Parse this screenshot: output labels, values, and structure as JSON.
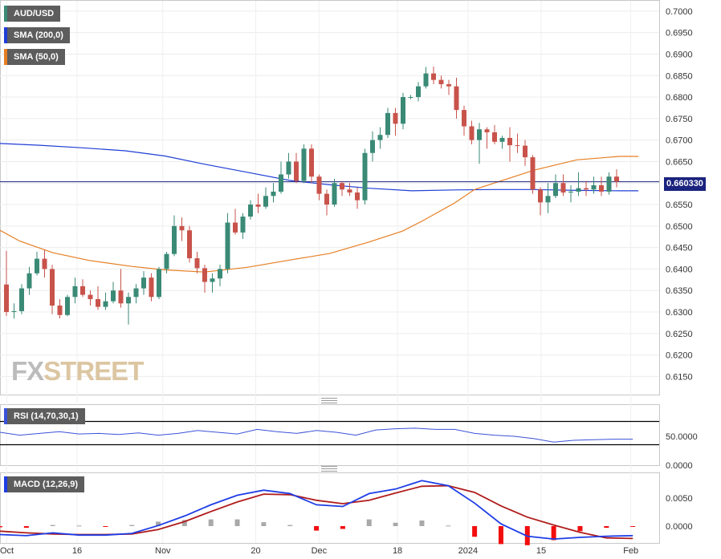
{
  "legend": {
    "pair": "AUD/USD",
    "sma200": "SMA (200,0)",
    "sma50": "SMA (50,0)",
    "rsi": "RSI (14,70,30,1)",
    "macd": "MACD (12,26,9)"
  },
  "watermark": {
    "part1": "FX",
    "part2": "STREET"
  },
  "colors": {
    "up": "#3a8a76",
    "down": "#c8534b",
    "sma200": "#1f3ed6",
    "sma50": "#e67e22",
    "rsi": "#3a52d8",
    "macd": "#1e3de6",
    "signal": "#b01c1c",
    "hist_pos": "#a9a9a9",
    "hist_neg": "#f20d0d",
    "legend_bg": "#5d5d5d",
    "price_box": "#1a237e"
  },
  "chart_data": [
    {
      "type": "candlestick",
      "name": "AUD/USD",
      "ylim": [
        0.612,
        0.701
      ],
      "yticks": [
        "0.7000",
        "0.6950",
        "0.6900",
        "0.6850",
        "0.6800",
        "0.6750",
        "0.6700",
        "0.6650",
        "0.6600",
        "0.6550",
        "0.6500",
        "0.6450",
        "0.6400",
        "0.6350",
        "0.6300",
        "0.6250",
        "0.6200",
        "0.6150"
      ],
      "current_price": "0.660330",
      "current_value": 0.6603,
      "date_range": [
        "2023-10-02",
        "2024-02-01"
      ],
      "x_ticks": [
        "Oct",
        "16",
        "Nov",
        "20",
        "Dec",
        "18",
        "2024",
        "15",
        "Feb"
      ],
      "ohlc": [
        [
          0.6364,
          0.6442,
          0.6291,
          0.63
        ],
        [
          0.63,
          0.632,
          0.6285,
          0.6302
        ],
        [
          0.6302,
          0.6365,
          0.6295,
          0.6355
        ],
        [
          0.6355,
          0.6405,
          0.634,
          0.639
        ],
        [
          0.639,
          0.644,
          0.6385,
          0.6424
        ],
        [
          0.6424,
          0.6445,
          0.638,
          0.64
        ],
        [
          0.64,
          0.641,
          0.6295,
          0.6315
        ],
        [
          0.6315,
          0.633,
          0.6285,
          0.6293
        ],
        [
          0.6293,
          0.634,
          0.629,
          0.6335
        ],
        [
          0.6335,
          0.638,
          0.632,
          0.636
        ],
        [
          0.636,
          0.6376,
          0.6335,
          0.634
        ],
        [
          0.634,
          0.635,
          0.6315,
          0.633
        ],
        [
          0.633,
          0.636,
          0.6305,
          0.6312
        ],
        [
          0.6312,
          0.6345,
          0.6305,
          0.6325
        ],
        [
          0.6325,
          0.637,
          0.632,
          0.635
        ],
        [
          0.635,
          0.64,
          0.631,
          0.632
        ],
        [
          0.632,
          0.6345,
          0.6271,
          0.6335
        ],
        [
          0.6335,
          0.6365,
          0.632,
          0.6355
        ],
        [
          0.6355,
          0.6395,
          0.634,
          0.638
        ],
        [
          0.638,
          0.639,
          0.6325,
          0.6335
        ],
        [
          0.6335,
          0.6405,
          0.633,
          0.64
        ],
        [
          0.64,
          0.644,
          0.639,
          0.6435
        ],
        [
          0.6435,
          0.6525,
          0.643,
          0.65
        ],
        [
          0.65,
          0.652,
          0.6465,
          0.649
        ],
        [
          0.649,
          0.65,
          0.6415,
          0.6425
        ],
        [
          0.6425,
          0.644,
          0.639,
          0.6402
        ],
        [
          0.6402,
          0.641,
          0.6345,
          0.637
        ],
        [
          0.637,
          0.639,
          0.6345,
          0.6378
        ],
        [
          0.6378,
          0.641,
          0.636,
          0.64
        ],
        [
          0.64,
          0.653,
          0.639,
          0.6508
        ],
        [
          0.6508,
          0.654,
          0.648,
          0.6485
        ],
        [
          0.6485,
          0.653,
          0.647,
          0.6522
        ],
        [
          0.6522,
          0.656,
          0.6515,
          0.655
        ],
        [
          0.655,
          0.6575,
          0.653,
          0.6545
        ],
        [
          0.6545,
          0.659,
          0.654,
          0.657
        ],
        [
          0.657,
          0.66,
          0.6555,
          0.658
        ],
        [
          0.658,
          0.665,
          0.6575,
          0.662
        ],
        [
          0.662,
          0.667,
          0.661,
          0.665
        ],
        [
          0.665,
          0.667,
          0.66,
          0.6605
        ],
        [
          0.6605,
          0.669,
          0.66,
          0.668
        ],
        [
          0.668,
          0.669,
          0.66,
          0.6615
        ],
        [
          0.6615,
          0.662,
          0.656,
          0.6575
        ],
        [
          0.6575,
          0.6585,
          0.6525,
          0.655
        ],
        [
          0.655,
          0.661,
          0.6545,
          0.66
        ],
        [
          0.66,
          0.6605,
          0.657,
          0.6585
        ],
        [
          0.6585,
          0.66,
          0.657,
          0.6578
        ],
        [
          0.6578,
          0.659,
          0.654,
          0.656
        ],
        [
          0.656,
          0.668,
          0.655,
          0.667
        ],
        [
          0.667,
          0.672,
          0.665,
          0.67
        ],
        [
          0.67,
          0.673,
          0.668,
          0.6712
        ],
        [
          0.6712,
          0.6775,
          0.6705,
          0.6763
        ],
        [
          0.6763,
          0.6775,
          0.671,
          0.6738
        ],
        [
          0.6738,
          0.681,
          0.6725,
          0.68
        ],
        [
          0.68,
          0.6805,
          0.6795,
          0.68
        ],
        [
          0.68,
          0.6835,
          0.679,
          0.6825
        ],
        [
          0.6825,
          0.687,
          0.682,
          0.6855
        ],
        [
          0.6855,
          0.6871,
          0.683,
          0.684
        ],
        [
          0.684,
          0.685,
          0.682,
          0.683
        ],
        [
          0.683,
          0.684,
          0.6805,
          0.6825
        ],
        [
          0.6825,
          0.6845,
          0.675,
          0.677
        ],
        [
          0.677,
          0.678,
          0.671,
          0.6732
        ],
        [
          0.6732,
          0.6745,
          0.669,
          0.67
        ],
        [
          0.67,
          0.674,
          0.6645,
          0.6725
        ],
        [
          0.6725,
          0.673,
          0.668,
          0.6718
        ],
        [
          0.6718,
          0.6735,
          0.669,
          0.6696
        ],
        [
          0.6696,
          0.671,
          0.668,
          0.6705
        ],
        [
          0.6705,
          0.673,
          0.665,
          0.6688
        ],
        [
          0.6688,
          0.6715,
          0.667,
          0.6687
        ],
        [
          0.6687,
          0.67,
          0.664,
          0.666
        ],
        [
          0.666,
          0.6665,
          0.6575,
          0.6585
        ],
        [
          0.6585,
          0.659,
          0.6525,
          0.6555
        ],
        [
          0.6555,
          0.66,
          0.653,
          0.657
        ],
        [
          0.657,
          0.662,
          0.6565,
          0.66
        ],
        [
          0.66,
          0.662,
          0.657,
          0.6578
        ],
        [
          0.6578,
          0.6595,
          0.6555,
          0.658
        ],
        [
          0.658,
          0.6625,
          0.657,
          0.6588
        ],
        [
          0.6588,
          0.6605,
          0.657,
          0.6585
        ],
        [
          0.6585,
          0.6615,
          0.6575,
          0.6595
        ],
        [
          0.6595,
          0.6615,
          0.657,
          0.658
        ],
        [
          0.658,
          0.6625,
          0.6573,
          0.6615
        ],
        [
          0.6615,
          0.6632,
          0.659,
          0.6603
        ]
      ],
      "sma200": [
        [
          0,
          0.6692
        ],
        [
          0.06,
          0.6688
        ],
        [
          0.125,
          0.6682
        ],
        [
          0.19,
          0.6675
        ],
        [
          0.25,
          0.6663
        ],
        [
          0.31,
          0.6644
        ],
        [
          0.375,
          0.6625
        ],
        [
          0.44,
          0.6606
        ],
        [
          0.5,
          0.6596
        ],
        [
          0.56,
          0.6588
        ],
        [
          0.625,
          0.6582
        ],
        [
          0.69,
          0.6584
        ],
        [
          0.75,
          0.6585
        ],
        [
          0.81,
          0.6585
        ],
        [
          0.875,
          0.6583
        ],
        [
          0.94,
          0.6582
        ],
        [
          0.9685,
          0.6582
        ]
      ],
      "sma50": [
        [
          0,
          0.649
        ],
        [
          0.03,
          0.6465
        ],
        [
          0.08,
          0.6438
        ],
        [
          0.135,
          0.642
        ],
        [
          0.2,
          0.6406
        ],
        [
          0.25,
          0.6398
        ],
        [
          0.31,
          0.6393
        ],
        [
          0.375,
          0.6404
        ],
        [
          0.44,
          0.6421
        ],
        [
          0.5,
          0.6436
        ],
        [
          0.56,
          0.6463
        ],
        [
          0.61,
          0.6488
        ],
        [
          0.64,
          0.6511
        ],
        [
          0.69,
          0.6554
        ],
        [
          0.72,
          0.6585
        ],
        [
          0.75,
          0.66
        ],
        [
          0.81,
          0.663
        ],
        [
          0.875,
          0.6654
        ],
        [
          0.94,
          0.6662
        ],
        [
          0.9685,
          0.6662
        ]
      ]
    },
    {
      "type": "line",
      "name": "RSI (14,70,30,1)",
      "ylim": [
        0,
        100
      ],
      "yticks": [
        "50.0000",
        "0.0000"
      ],
      "x": [
        0,
        0.03,
        0.06,
        0.09,
        0.12,
        0.15,
        0.18,
        0.21,
        0.24,
        0.27,
        0.3,
        0.33,
        0.36,
        0.39,
        0.42,
        0.45,
        0.48,
        0.51,
        0.54,
        0.57,
        0.6,
        0.63,
        0.66,
        0.69,
        0.72,
        0.75,
        0.78,
        0.81,
        0.84,
        0.87,
        0.9,
        0.93,
        0.96
      ],
      "values": [
        57,
        52,
        55,
        58,
        54,
        55,
        53,
        56,
        52,
        55,
        60,
        57,
        54,
        62,
        58,
        55,
        60,
        57,
        52,
        61,
        63,
        64,
        62,
        62,
        55,
        52,
        50,
        46,
        40,
        43,
        44,
        45,
        45
      ]
    },
    {
      "type": "macd",
      "name": "MACD (12,26,9)",
      "ylim": [
        -0.003,
        0.009
      ],
      "yticks": [
        "0.0050",
        "0.0000"
      ],
      "x": [
        0,
        0.04,
        0.08,
        0.12,
        0.16,
        0.2,
        0.24,
        0.28,
        0.32,
        0.36,
        0.4,
        0.44,
        0.48,
        0.52,
        0.56,
        0.6,
        0.64,
        0.68,
        0.72,
        0.76,
        0.8,
        0.84,
        0.88,
        0.92,
        0.96
      ],
      "macd": [
        -0.0015,
        -0.0017,
        -0.0012,
        -0.0016,
        -0.0016,
        -0.0013,
        0.0001,
        0.0018,
        0.0038,
        0.0055,
        0.0064,
        0.0058,
        0.0038,
        0.0035,
        0.0058,
        0.0066,
        0.0081,
        0.0072,
        0.0041,
        0.0004,
        -0.0018,
        -0.0023,
        -0.002,
        -0.0018,
        -0.0017
      ],
      "signal": [
        -0.0009,
        -0.0012,
        -0.0014,
        -0.0015,
        -0.0015,
        -0.0014,
        -0.0006,
        0.0008,
        0.0026,
        0.0043,
        0.0057,
        0.0056,
        0.0046,
        0.004,
        0.0046,
        0.0059,
        0.0071,
        0.0072,
        0.006,
        0.0036,
        0.0016,
        0.0002,
        -0.0011,
        -0.0021,
        -0.0022
      ],
      "histogram": [
        -0.0002,
        -0.0003,
        0.0002,
        0.0001,
        -0.0001,
        0.0002,
        0.0008,
        0.0011,
        0.0012,
        0.0012,
        0.0007,
        0.0002,
        -0.0008,
        -0.0005,
        0.0012,
        0.0006,
        0.001,
        0.0001,
        -0.0019,
        -0.0032,
        -0.0034,
        -0.0025,
        -0.0009,
        -0.0003,
        -0.0001
      ]
    }
  ]
}
